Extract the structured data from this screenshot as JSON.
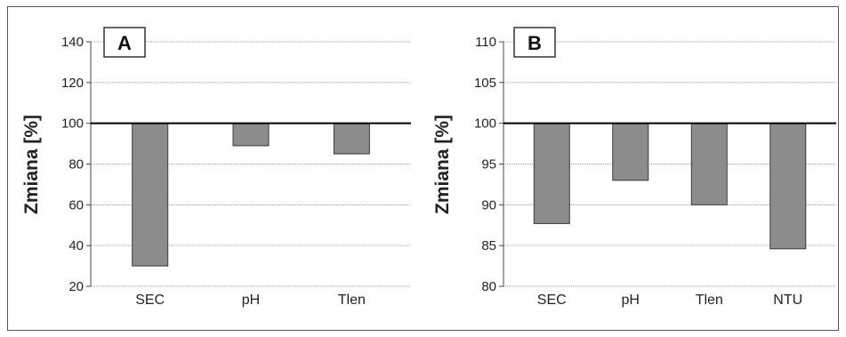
{
  "chart_data": [
    {
      "type": "bar",
      "panel_label": "A",
      "title": "",
      "xlabel": "",
      "ylabel": "Zmiana [%]",
      "ylim": [
        20,
        140
      ],
      "yticks": [
        20,
        40,
        60,
        80,
        100,
        120,
        140
      ],
      "baseline": 100,
      "grid": "horizontal, dotted",
      "categories": [
        "SEC",
        "pH",
        "Tlen"
      ],
      "values": [
        30,
        89,
        85
      ],
      "colors": {
        "bar": "#8c8c8c",
        "bar_stroke": "#3a3a3a"
      }
    },
    {
      "type": "bar",
      "panel_label": "B",
      "title": "",
      "xlabel": "",
      "ylabel": "Zmiana [%]",
      "ylim": [
        80,
        110
      ],
      "yticks": [
        80,
        85,
        90,
        95,
        100,
        105,
        110
      ],
      "baseline": 100,
      "grid": "horizontal, dotted",
      "categories": [
        "SEC",
        "pH",
        "Tlen",
        "NTU"
      ],
      "values": [
        87.7,
        93,
        90,
        84.6
      ],
      "colors": {
        "bar": "#8c8c8c",
        "bar_stroke": "#3a3a3a"
      }
    }
  ]
}
